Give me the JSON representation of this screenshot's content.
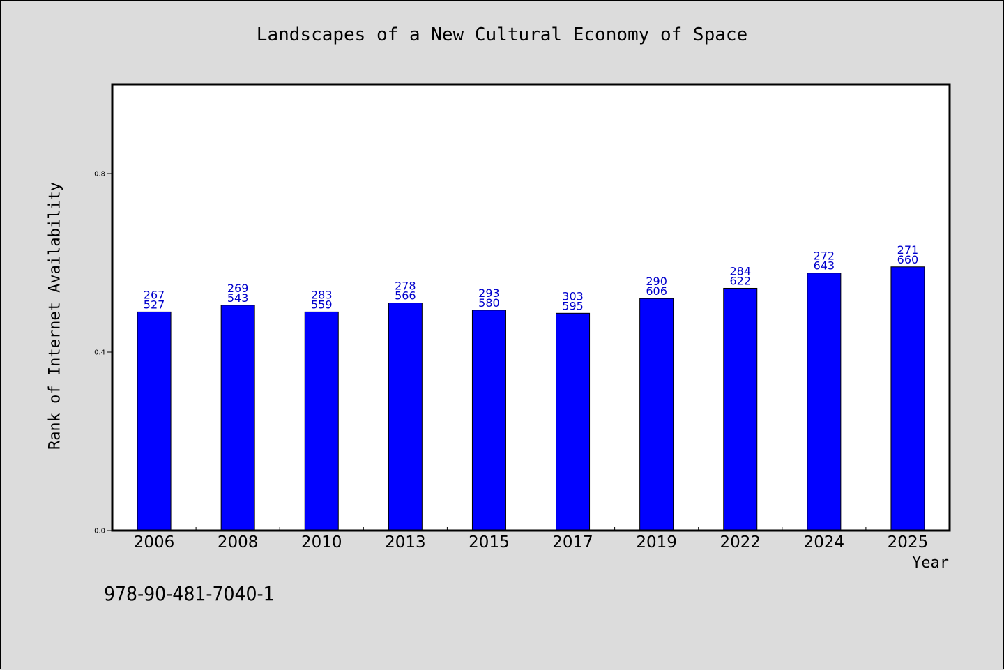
{
  "chart_data": {
    "type": "bar",
    "title": "Landscapes of a New Cultural Economy of Space",
    "xlabel": "Year",
    "ylabel": "Rank of Internet Availability",
    "categories": [
      "2006",
      "2008",
      "2010",
      "2013",
      "2015",
      "2017",
      "2019",
      "2022",
      "2024",
      "2025"
    ],
    "values": [
      0.49,
      0.505,
      0.49,
      0.51,
      0.494,
      0.487,
      0.52,
      0.543,
      0.577,
      0.591
    ],
    "bar_labels_top": [
      "267",
      "269",
      "283",
      "278",
      "293",
      "303",
      "290",
      "284",
      "272",
      "271"
    ],
    "bar_labels_bottom": [
      "527",
      "543",
      "559",
      "566",
      "580",
      "595",
      "606",
      "622",
      "643",
      "660"
    ],
    "yticks": [
      0.0,
      0.4,
      0.8
    ],
    "ytick_labels": [
      "0.0",
      "0.4",
      "0.8"
    ],
    "ylim": [
      0.0,
      1.0
    ],
    "grid": false,
    "legend": "none",
    "colors": {
      "bar": "#0000ff",
      "label": "#0000cc",
      "background": "#dcdcdc",
      "plot": "#ffffff"
    }
  },
  "footer": {
    "isbn": "978-90-481-7040-1"
  }
}
